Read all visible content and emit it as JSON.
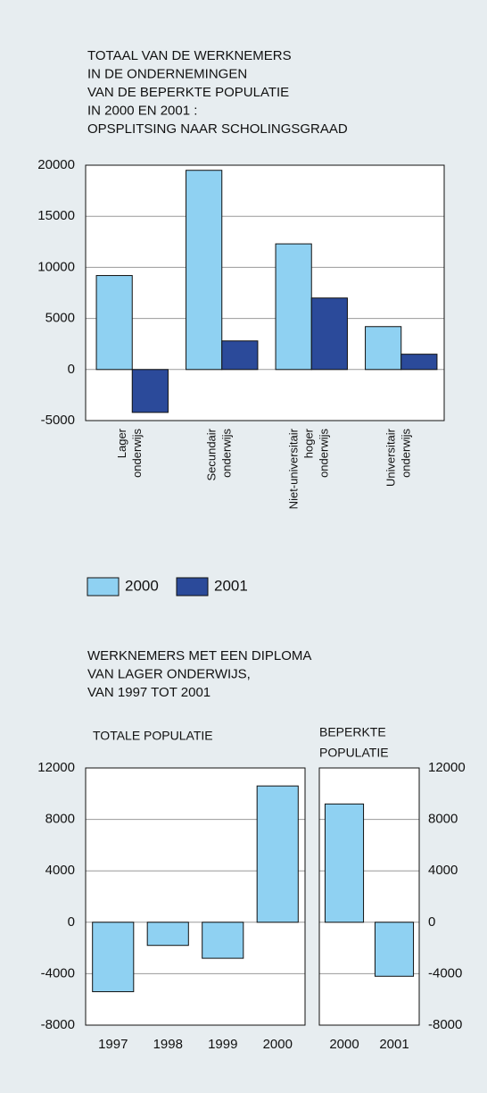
{
  "chart_data": [
    {
      "type": "bar",
      "title": [
        "TOTAAL VAN DE WERKNEMERS",
        "IN DE ONDERNEMINGEN",
        "VAN DE BEPERKTE POPULATIE",
        "IN 2000 EN 2001 :",
        "OPSPLITSING NAAR SCHOLINGSGRAAD"
      ],
      "categories": [
        [
          "Lager",
          "onderwijs"
        ],
        [
          "Secundair",
          "onderwijs"
        ],
        [
          "Niet-universitair",
          "hoger",
          "onderwijs"
        ],
        [
          "Universitair",
          "onderwijs"
        ]
      ],
      "series": [
        {
          "name": "2000",
          "color": "#8fd1f2",
          "values": [
            9200,
            19500,
            12300,
            4200
          ]
        },
        {
          "name": "2001",
          "color": "#2b4a9a",
          "values": [
            -4200,
            2800,
            7000,
            1500
          ]
        }
      ],
      "ylim": [
        -5000,
        20000
      ],
      "yticks": [
        -5000,
        0,
        5000,
        10000,
        15000,
        20000
      ],
      "grid": true,
      "legend": "bottom"
    },
    {
      "type": "bar",
      "title": [
        "WERKNEMERS MET EEN DIPLOMA",
        "VAN LAGER ONDERWIJS,",
        "VAN 1997 TOT 2001"
      ],
      "subtitle": [
        "TOTALE POPULATIE"
      ],
      "categories": [
        "1997",
        "1998",
        "1999",
        "2000"
      ],
      "values": [
        -5400,
        -1800,
        -2800,
        10600
      ],
      "color": "#8fd1f2",
      "ylim": [
        -8000,
        12000
      ],
      "yticks": [
        -8000,
        -4000,
        0,
        4000,
        8000,
        12000
      ],
      "grid": true
    },
    {
      "type": "bar",
      "subtitle": [
        "BEPERKTE",
        "POPULATIE"
      ],
      "categories": [
        "2000",
        "2001"
      ],
      "values": [
        9200,
        -4200
      ],
      "color": "#8fd1f2",
      "ylim": [
        -8000,
        12000
      ],
      "yticks": [
        -8000,
        -4000,
        0,
        4000,
        8000,
        12000
      ],
      "grid": true,
      "yaxis_side": "right"
    }
  ]
}
